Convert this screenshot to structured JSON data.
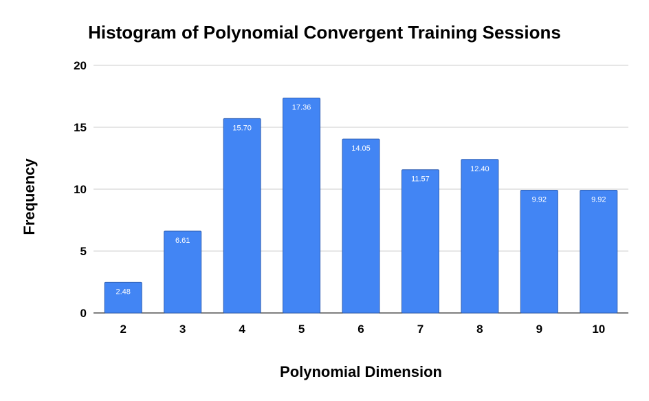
{
  "chart_data": {
    "type": "bar",
    "title": "Histogram of Polynomial Convergent Training Sessions",
    "xlabel": "Polynomial Dimension",
    "ylabel": "Frequency",
    "categories": [
      "2",
      "3",
      "4",
      "5",
      "6",
      "7",
      "8",
      "9",
      "10"
    ],
    "values": [
      2.48,
      6.61,
      15.7,
      17.36,
      14.05,
      11.57,
      12.4,
      9.92,
      9.92
    ],
    "value_labels": [
      "2.48",
      "6.61",
      "15.70",
      "17.36",
      "14.05",
      "11.57",
      "12.40",
      "9.92",
      "9.92"
    ],
    "yticks": [
      "0",
      "5",
      "10",
      "15",
      "20"
    ],
    "ylim": [
      0,
      20
    ],
    "grid": true,
    "legend": "none",
    "colors": {
      "bar": "#4285f4",
      "bar_edge": "#2f5fb3",
      "grid": "#cccccc",
      "axis": "#333333"
    }
  }
}
